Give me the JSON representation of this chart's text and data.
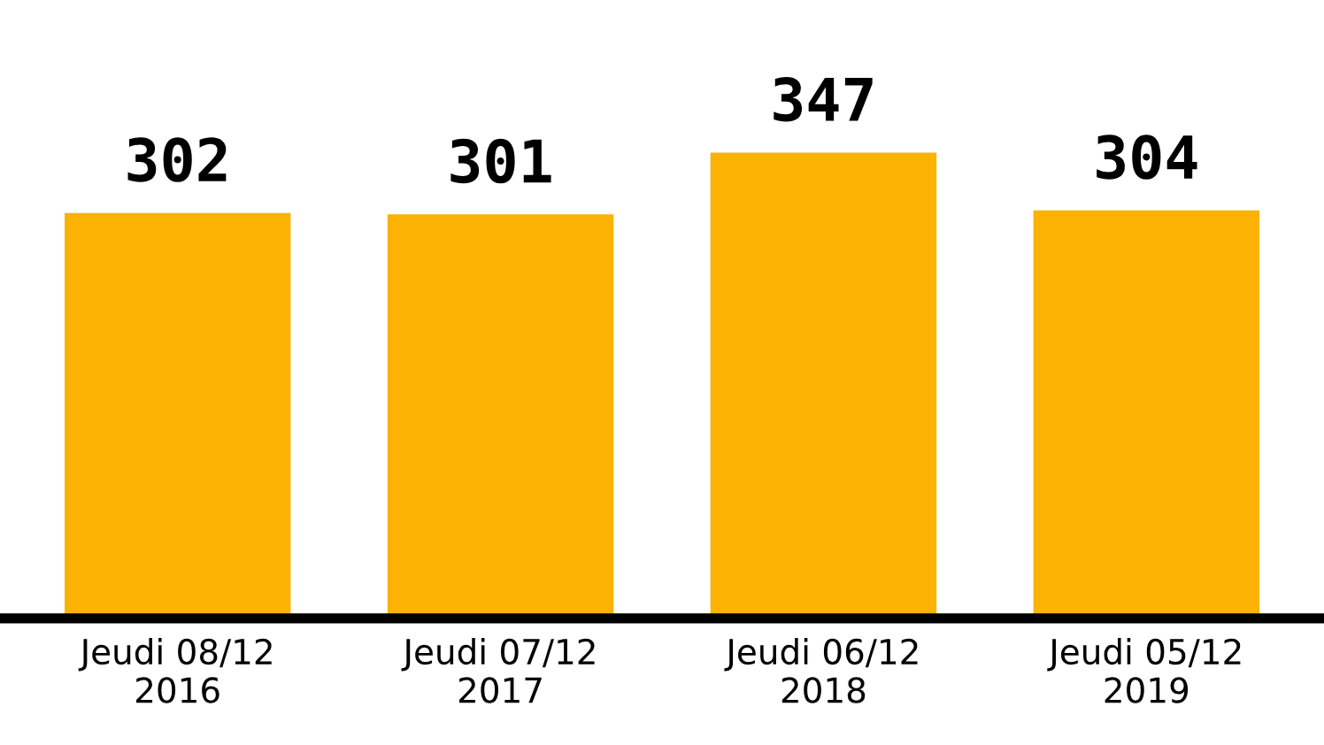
{
  "chart_data": {
    "type": "bar",
    "categories": [
      "Jeudi 08/12\n2016",
      "Jeudi 07/12\n2017",
      "Jeudi 06/12\n2018",
      "Jeudi 05/12\n2019"
    ],
    "values": [
      302,
      301,
      347,
      304
    ],
    "color": "#fbb203",
    "data_labels": true,
    "grid": false,
    "legend": false
  }
}
